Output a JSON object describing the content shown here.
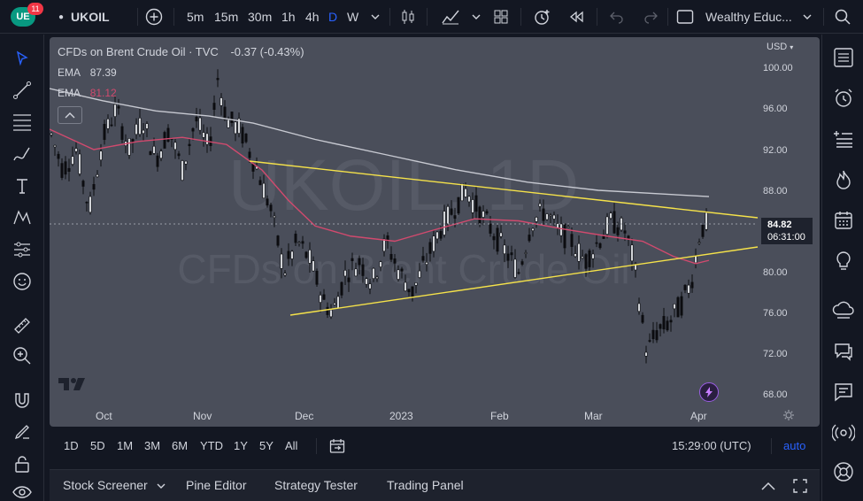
{
  "topbar": {
    "notification_count": "11",
    "symbol": "UKOIL",
    "intervals": [
      "5m",
      "15m",
      "30m",
      "1h",
      "4h",
      "D",
      "W"
    ],
    "active_interval": "D",
    "account": "Wealthy Educ..."
  },
  "chart": {
    "title": "CFDs on Brent Crude Oil · TVC",
    "change": "-0.37 (-0.43%)",
    "ema1_label": "EMA",
    "ema1_value": "87.39",
    "ema2_label": "EMA",
    "ema2_value": "81.12",
    "watermark_symbol": "UKOIL, 1D",
    "watermark_name": "CFDs on Brent Crude Oil",
    "currency": "USD",
    "price_axis": [
      "100.00",
      "96.00",
      "92.00",
      "88.00",
      "80.00",
      "76.00",
      "72.00",
      "68.00"
    ],
    "time_axis": [
      "Oct",
      "Nov",
      "Dec",
      "2023",
      "Feb",
      "Mar",
      "Apr"
    ],
    "current_price": "84.82",
    "countdown": "06:31:00",
    "colors": {
      "ema_fast": "#d14a6e",
      "ema_slow": "#c7c9d1",
      "trendline": "#f5e24a",
      "background": "#4a4e5a"
    }
  },
  "chart_data": {
    "type": "candlestick",
    "series": [
      {
        "name": "EMA",
        "values_approx": "slow EMA declining from ~98 (Sep) to ~87.4 (Apr)"
      }
    ],
    "ylim": [
      68,
      100
    ],
    "last_price": 84.82
  },
  "rangebar": {
    "ranges": [
      "1D",
      "5D",
      "1M",
      "3M",
      "6M",
      "YTD",
      "1Y",
      "5Y",
      "All"
    ],
    "clock": "15:29:00 (UTC)",
    "auto": "auto"
  },
  "bottombar": {
    "stock_screener": "Stock Screener",
    "pine_editor": "Pine Editor",
    "strategy_tester": "Strategy Tester",
    "trading_panel": "Trading Panel"
  }
}
